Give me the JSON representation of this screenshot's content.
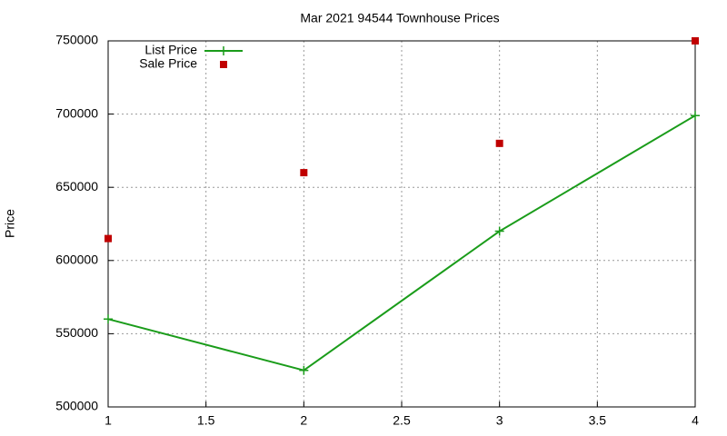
{
  "chart_data": {
    "type": "line",
    "title": "Mar 2021 94544 Townhouse Prices",
    "y_label": "Price",
    "x": [
      1,
      2,
      3,
      4
    ],
    "series": [
      {
        "name": "List Price",
        "color": "#1a9c1a",
        "mode": "lines+markers",
        "marker": "plus",
        "values": [
          560000,
          525000,
          620000,
          699000
        ]
      },
      {
        "name": "Sale Price",
        "color": "#c00000",
        "mode": "markers",
        "marker": "square",
        "values": [
          615000,
          660000,
          680000,
          750000
        ]
      }
    ],
    "xlim": [
      1,
      4
    ],
    "xticks": [
      1,
      1.5,
      2,
      2.5,
      3,
      3.5,
      4
    ],
    "ylim": [
      500000,
      750000
    ],
    "yticks": [
      500000,
      550000,
      600000,
      650000,
      700000,
      750000
    ],
    "grid": true,
    "legend": "top-left"
  }
}
